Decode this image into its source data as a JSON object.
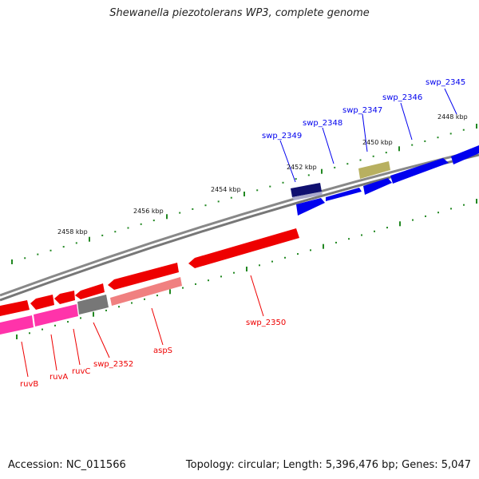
{
  "title": "Shewanella piezotolerans WP3, complete genome",
  "accession": "Accession: NC_011566",
  "topology": "Topology: circular; Length: 5,396,476 bp; Genes: 5,047",
  "colors": {
    "forward_gene": "#0000ee",
    "reverse_gene": "#ee0000",
    "rna_gene": "#ff33aa",
    "pseudo_gene": "#777777",
    "other_gene": "#b8b060",
    "selected_gene": "#101070",
    "tick": "#228822",
    "backbone": "#888888"
  },
  "ruler_ticks": [
    {
      "label": "2448 kbp"
    },
    {
      "label": "2450 kbp"
    },
    {
      "label": "2452 kbp"
    },
    {
      "label": "2454 kbp"
    },
    {
      "label": "2456 kbp"
    },
    {
      "label": "2458 kbp"
    }
  ],
  "genes": [
    {
      "name": "swp_2345",
      "strand": "forward"
    },
    {
      "name": "swp_2346",
      "strand": "forward"
    },
    {
      "name": "swp_2347",
      "strand": "forward"
    },
    {
      "name": "swp_2348",
      "strand": "forward"
    },
    {
      "name": "swp_2349",
      "strand": "forward"
    },
    {
      "name": "swp_2350",
      "strand": "reverse"
    },
    {
      "name": "aspS",
      "strand": "reverse"
    },
    {
      "name": "swp_2352",
      "strand": "reverse"
    },
    {
      "name": "ruvC",
      "strand": "reverse"
    },
    {
      "name": "ruvA",
      "strand": "reverse"
    },
    {
      "name": "ruvB",
      "strand": "reverse"
    }
  ]
}
